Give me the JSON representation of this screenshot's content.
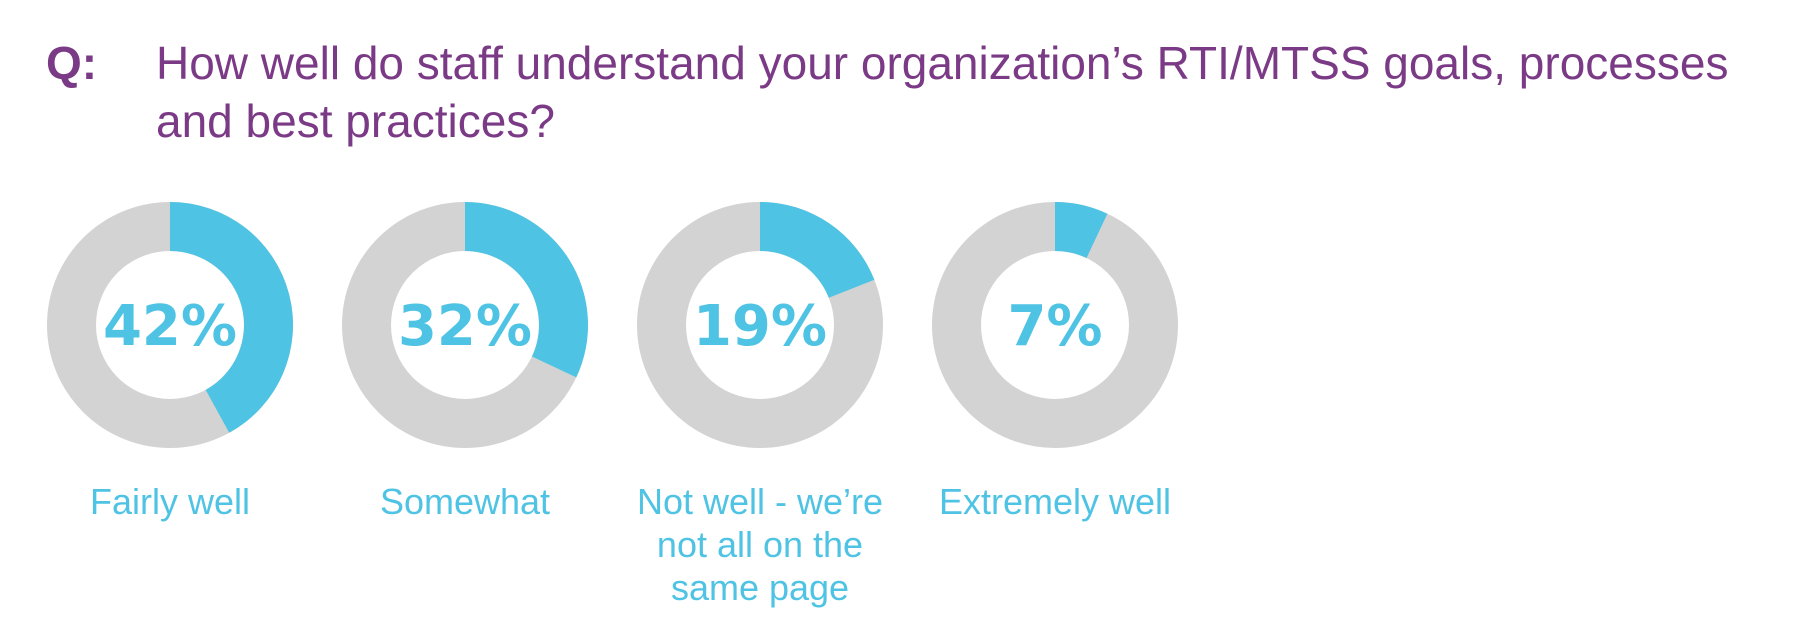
{
  "question": {
    "prefix": "Q:",
    "text": "How well do staff understand your organization’s RTI/MTSS goals, processes and best practices?"
  },
  "colors": {
    "title": "#7b3a86",
    "accent": "#4fc3e3",
    "track": "#d3d3d3"
  },
  "chart_data": {
    "type": "pie",
    "variant": "donut",
    "unit": "%",
    "categories": [
      "Fairly well",
      "Somewhat",
      "Not well - we’re not all on the same page",
      "Extremely well"
    ],
    "values": [
      42,
      32,
      19,
      7
    ],
    "value_labels": [
      "42%",
      "32%",
      "19%",
      "7%"
    ]
  }
}
